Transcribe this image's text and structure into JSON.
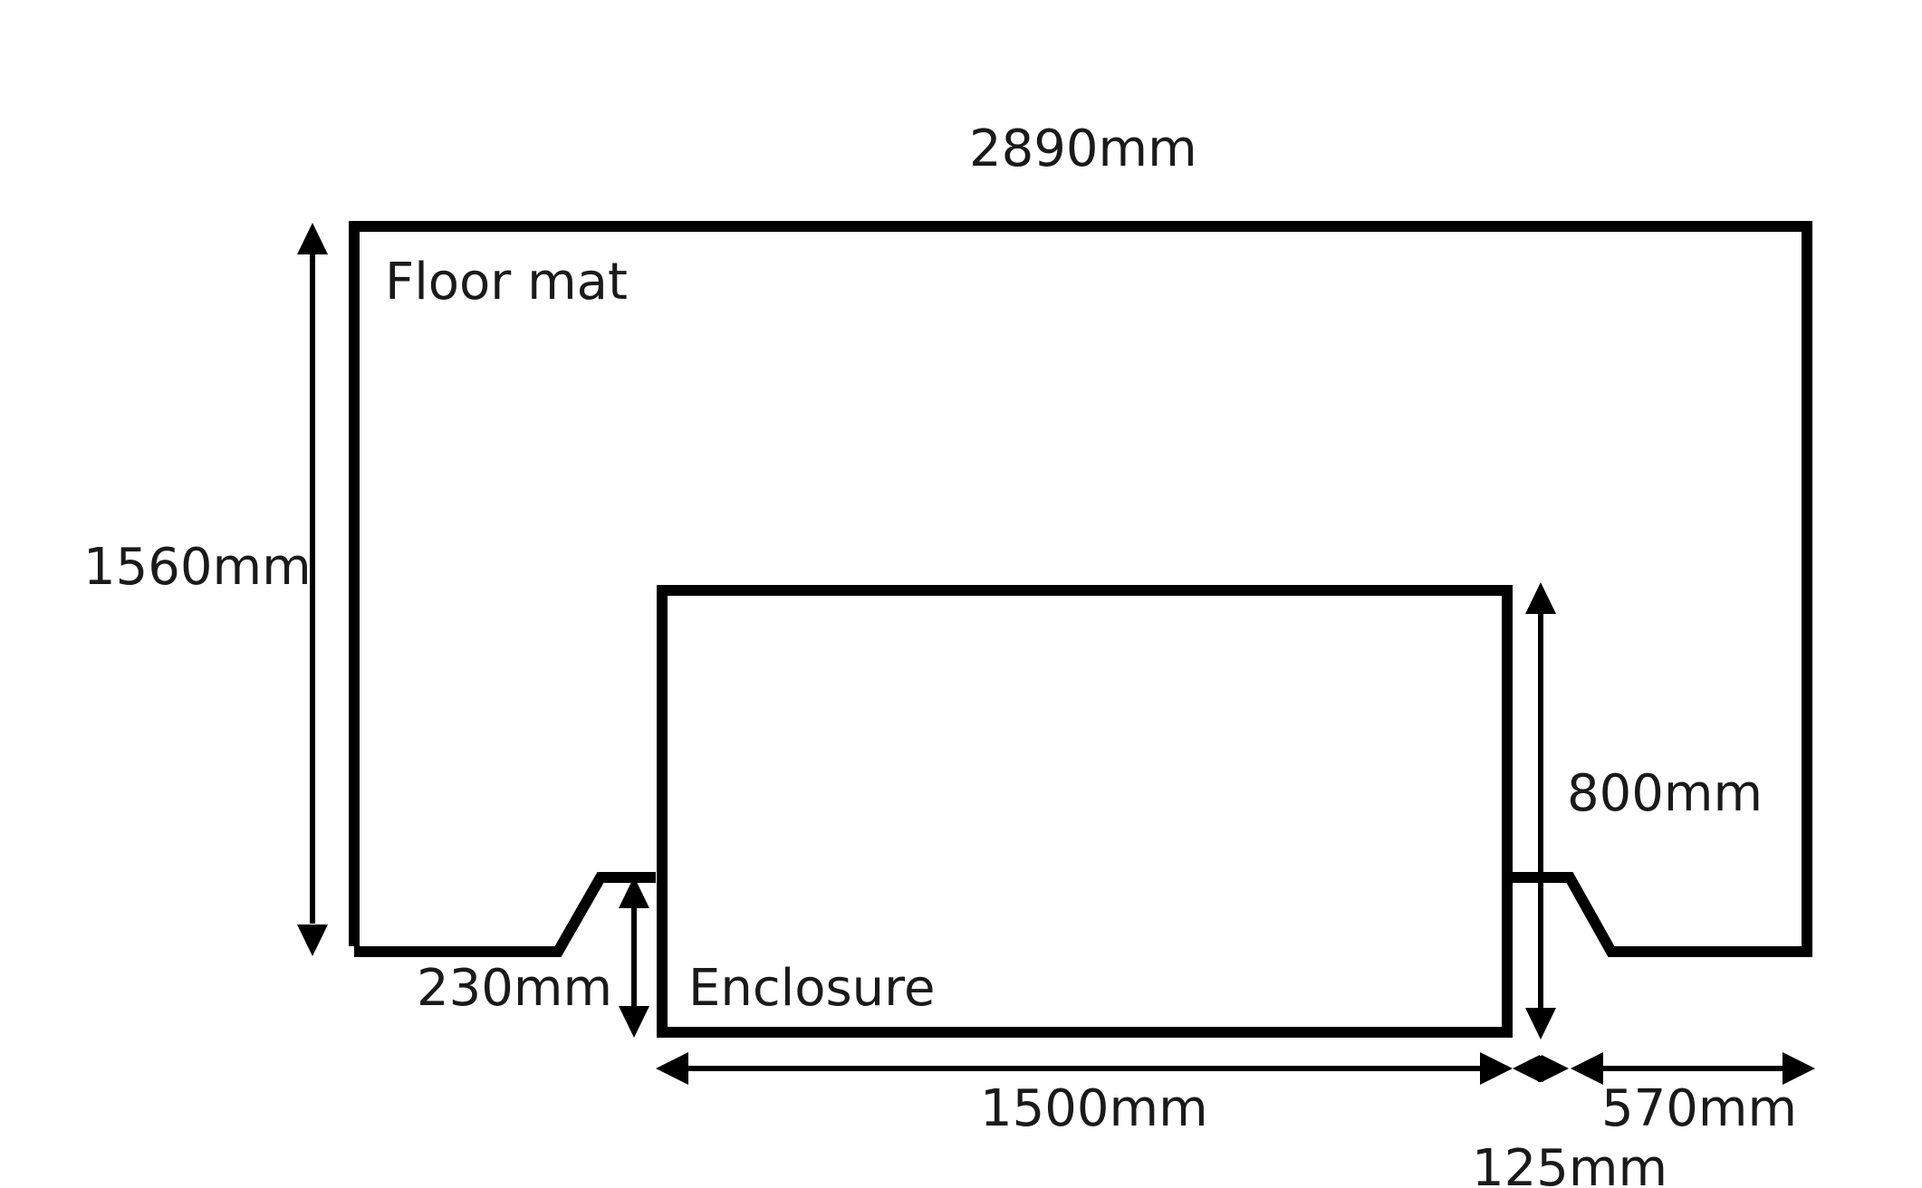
{
  "labels": {
    "floor_mat": "Floor mat",
    "enclosure": "Enclosure"
  },
  "dimensions": {
    "overall_width": "2890mm",
    "overall_height": "1560mm",
    "enclosure_width": "1500mm",
    "enclosure_depth": "800mm",
    "notch_depth": "230mm",
    "side_gap": "125mm",
    "side_width": "570mm"
  }
}
